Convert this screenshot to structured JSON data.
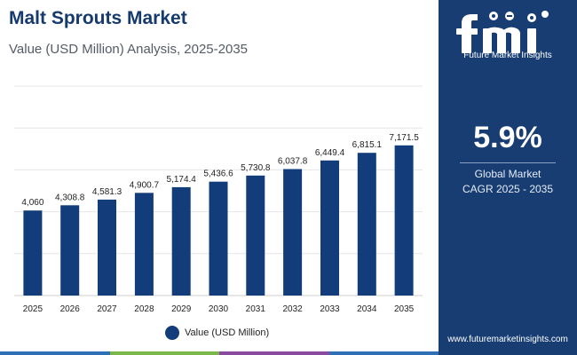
{
  "header": {
    "title": "Malt Sprouts Market",
    "subtitle": "Value (USD Million) Analysis, 2025-2035"
  },
  "side": {
    "brand": "Future Market Insights",
    "cagr_value": "5.9%",
    "cagr_caption_line1": "Global Market",
    "cagr_caption_line2": "CAGR 2025 - 2035",
    "url": "www.futuremarketinsights.com"
  },
  "colors": {
    "bar": "#123d7a",
    "side_bg": "#173d73",
    "grid": "#e6e6e6",
    "footer_stripe": [
      "#2f6fb5",
      "#7ab648",
      "#8a4aa0",
      "#2f6fb5"
    ]
  },
  "chart_data": {
    "type": "bar",
    "categories": [
      "2025",
      "2026",
      "2027",
      "2028",
      "2029",
      "2030",
      "2031",
      "2032",
      "2033",
      "2034",
      "2035"
    ],
    "series": [
      {
        "name": "Value (USD Million)",
        "values": [
          4060,
          4308.8,
          4581.3,
          4900.7,
          5174.4,
          5436.6,
          5730.8,
          6037.8,
          6449.4,
          6815.1,
          7171.5
        ],
        "labels": [
          "4,060",
          "4,308.8",
          "4,581.3",
          "4,900.7",
          "5,174.4",
          "5,436.6",
          "5,730.8",
          "6,037.8",
          "6,449.4",
          "6,815.1",
          "7,171.5"
        ]
      }
    ],
    "ylim": [
      0,
      10000
    ],
    "grid": true,
    "legend_position": "bottom"
  }
}
